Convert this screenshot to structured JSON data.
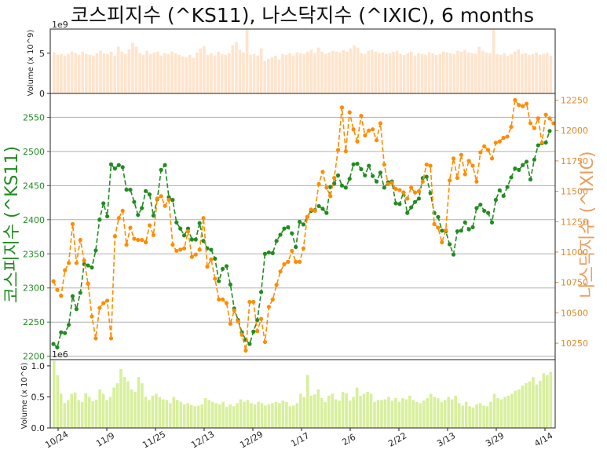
{
  "chart_data": [
    {
      "type": "bar",
      "panel": "top",
      "ylabel": "Volume (x 10^9)",
      "offset_text": "1e9",
      "yticks": [
        "0",
        "5"
      ],
      "ylim": [
        0,
        8
      ],
      "color": "#ffe4cc",
      "values": [
        5.1,
        4.8,
        4.9,
        4.7,
        4.9,
        5.2,
        5.0,
        4.8,
        5.2,
        4.9,
        4.8,
        4.7,
        5.0,
        5.3,
        5.0,
        4.9,
        5.2,
        4.7,
        5.8,
        5.2,
        4.9,
        5.5,
        6.3,
        5.8,
        5.0,
        4.8,
        5.3,
        4.9,
        5.1,
        5.2,
        4.7,
        5.0,
        4.9,
        5.2,
        5.0,
        4.8,
        4.6,
        4.5,
        4.8,
        4.4,
        5.1,
        5.6,
        5.9,
        4.8,
        5.0,
        4.7,
        5.2,
        4.9,
        4.8,
        5.0,
        6.0,
        6.4,
        5.4,
        5.1,
        8.0,
        4.8,
        4.9,
        4.7,
        5.6,
        4.0,
        4.3,
        4.5,
        4.7,
        4.2,
        4.9,
        4.8,
        5.0,
        4.7,
        5.1,
        5.0,
        4.9,
        5.2,
        5.4,
        5.0,
        5.7,
        5.2,
        4.9,
        5.1,
        5.3,
        5.2,
        5.1,
        5.4,
        5.2,
        5.6,
        6.0,
        5.7,
        5.0,
        4.9,
        5.3,
        5.4,
        5.2,
        5.0,
        5.1,
        4.9,
        5.0,
        5.2,
        5.3,
        4.9,
        4.8,
        5.0,
        5.2,
        4.7,
        5.0,
        4.9,
        4.8,
        5.1,
        5.0,
        4.8,
        4.9,
        5.2,
        5.1,
        5.0,
        4.9,
        5.3,
        5.2,
        5.4,
        5.1,
        5.0,
        4.9,
        5.8,
        5.3,
        5.1,
        5.0,
        7.9,
        4.9,
        4.8,
        5.0,
        4.7,
        4.9,
        5.2,
        5.5,
        4.9,
        5.0,
        4.8,
        4.9,
        5.1,
        4.8,
        4.9,
        5.0,
        4.7
      ]
    },
    {
      "type": "line",
      "panel": "main",
      "title": "코스피지수 (^KS11), 나스닥지수 (^IXIC), 6 months",
      "ylabel_left": "코스피지수 (^KS11)",
      "ylabel_right": "나스닥지수 (^IXIC)",
      "left_ticks": [
        "2200",
        "2250",
        "2300",
        "2350",
        "2400",
        "2450",
        "2500",
        "2550"
      ],
      "right_ticks": [
        "10250",
        "10500",
        "10750",
        "11000",
        "11250",
        "11500",
        "11750",
        "12000",
        "12250"
      ],
      "left_ylim": [
        2195,
        2585
      ],
      "right_ylim": [
        10115,
        12305
      ],
      "x_ticks": [
        "10/24",
        "11/9",
        "11/25",
        "12/13",
        "12/29",
        "1/17",
        "2/6",
        "2/22",
        "3/13",
        "3/29",
        "4/14"
      ],
      "series": [
        {
          "axis": "left",
          "color": "#228b22",
          "values": [
            2218,
            2213,
            2235,
            2234,
            2246,
            2288,
            2269,
            2293,
            2335,
            2333,
            2330,
            2355,
            2400,
            2424,
            2405,
            2481,
            2475,
            2480,
            2477,
            2444,
            2444,
            2426,
            2407,
            2417,
            2442,
            2437,
            2406,
            2430,
            2473,
            2480,
            2433,
            2429,
            2396,
            2387,
            2377,
            2387,
            2371,
            2371,
            2395,
            2369,
            2358,
            2356,
            2343,
            2310,
            2328,
            2332,
            2305,
            2270,
            2253,
            2235,
            2224,
            2218,
            2236,
            2253,
            2294,
            2350,
            2352,
            2351,
            2369,
            2378,
            2387,
            2389,
            2380,
            2360,
            2397,
            2393,
            2404,
            2413,
            2414,
            2420,
            2416,
            2410,
            2448,
            2453,
            2465,
            2450,
            2447,
            2460,
            2481,
            2482,
            2474,
            2465,
            2479,
            2464,
            2456,
            2469,
            2447,
            2455,
            2456,
            2424,
            2423,
            2440,
            2410,
            2418,
            2426,
            2431,
            2461,
            2463,
            2439,
            2410,
            2404,
            2384,
            2383,
            2364,
            2349,
            2383,
            2384,
            2396,
            2386,
            2389,
            2417,
            2422,
            2413,
            2410,
            2396,
            2429,
            2443,
            2435,
            2448,
            2462,
            2475,
            2473,
            2480,
            2485,
            2459,
            2488,
            2509,
            2512,
            2513,
            2530
          ]
        },
        {
          "axis": "right",
          "color": "#ff8c00",
          "values": [
            10760,
            10690,
            10640,
            10850,
            10910,
            11230,
            10910,
            11100,
            10930,
            10740,
            10470,
            10290,
            10540,
            10580,
            10600,
            10290,
            11130,
            11280,
            11340,
            11060,
            11200,
            11110,
            11100,
            11100,
            11080,
            11220,
            11140,
            11440,
            11460,
            11380,
            11430,
            11060,
            11010,
            11020,
            11030,
            11170,
            10960,
            10980,
            11020,
            11280,
            10880,
            10940,
            10780,
            10610,
            10610,
            10580,
            10410,
            10520,
            10430,
            10320,
            10190,
            10590,
            10590,
            10350,
            10450,
            10260,
            10550,
            10610,
            10730,
            10840,
            10900,
            10920,
            11010,
            10920,
            10920,
            11030,
            11290,
            11350,
            11340,
            11560,
            11660,
            11530,
            11460,
            11610,
            11840,
            12190,
            11830,
            12150,
            12010,
            11910,
            12120,
            11960,
            12000,
            12010,
            11920,
            12060,
            11720,
            11560,
            11570,
            11520,
            11510,
            11490,
            11440,
            11530,
            11490,
            11500,
            11580,
            11720,
            11710,
            11230,
            11200,
            11080,
            11180,
            11590,
            11770,
            11610,
            11800,
            11640,
            11750,
            11710,
            11580,
            11820,
            11870,
            11840,
            11770,
            11900,
            11910,
            11940,
            11950,
            12030,
            12250,
            12210,
            12200,
            12220,
            12060,
            12020,
            12100,
            11900,
            12130,
            12100,
            12060
          ]
        }
      ]
    },
    {
      "type": "bar",
      "panel": "bottom",
      "ylabel": "Volume (x 10^6)",
      "offset_text": "1e6",
      "yticks": [
        "0.0",
        "0.5",
        "1.0"
      ],
      "ylim": [
        0,
        1.1
      ],
      "color": "#d8ef9c",
      "values": [
        1.08,
        0.85,
        0.55,
        0.4,
        0.45,
        0.55,
        0.57,
        0.45,
        0.42,
        0.56,
        0.5,
        0.43,
        0.45,
        0.62,
        0.55,
        0.45,
        0.5,
        0.65,
        0.72,
        0.95,
        0.82,
        0.75,
        0.62,
        0.58,
        0.82,
        0.72,
        0.5,
        0.45,
        0.52,
        0.55,
        0.5,
        0.46,
        0.45,
        0.4,
        0.5,
        0.45,
        0.42,
        0.38,
        0.4,
        0.37,
        0.35,
        0.36,
        0.38,
        0.48,
        0.45,
        0.42,
        0.4,
        0.38,
        0.42,
        0.34,
        0.38,
        0.35,
        0.4,
        0.46,
        0.42,
        0.45,
        0.4,
        0.38,
        0.42,
        0.4,
        0.36,
        0.38,
        0.4,
        0.42,
        0.4,
        0.44,
        0.42,
        0.35,
        0.36,
        0.4,
        0.55,
        0.5,
        0.85,
        0.52,
        0.54,
        0.62,
        0.48,
        0.42,
        0.52,
        0.55,
        0.46,
        0.44,
        0.58,
        0.56,
        0.44,
        0.5,
        0.65,
        0.52,
        0.55,
        0.58,
        0.55,
        0.42,
        0.45,
        0.45,
        0.46,
        0.5,
        0.44,
        0.48,
        0.42,
        0.48,
        0.46,
        0.52,
        0.45,
        0.42,
        0.4,
        0.44,
        0.48,
        0.55,
        0.5,
        0.48,
        0.42,
        0.45,
        0.5,
        0.46,
        0.52,
        0.4,
        0.36,
        0.42,
        0.35,
        0.33,
        0.38,
        0.4,
        0.36,
        0.35,
        0.42,
        0.55,
        0.48,
        0.46,
        0.5,
        0.52,
        0.55,
        0.6,
        0.62,
        0.68,
        0.72,
        0.75,
        0.82,
        0.7,
        0.76,
        0.88,
        0.85,
        0.9
      ]
    }
  ]
}
